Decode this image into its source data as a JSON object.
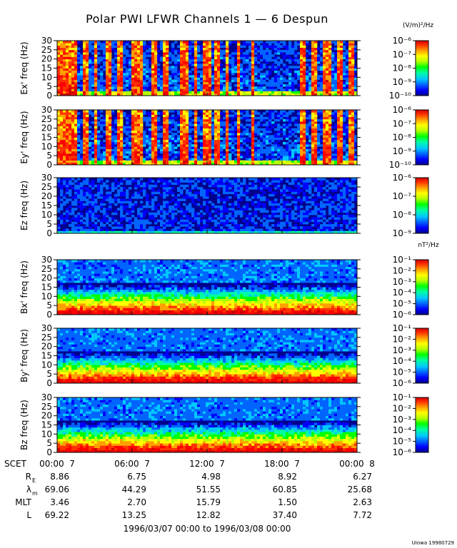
{
  "header": {
    "title": "Polar PWI LFWR Channels 1 — 6 Despun",
    "units_e": "(V/m)²/Hz",
    "units_b": "nT²/Hz"
  },
  "colors": {
    "spectrum": [
      "#00008c",
      "#0000ff",
      "#0064ff",
      "#00c8ff",
      "#00ffa0",
      "#00ff00",
      "#b4ff00",
      "#ffff00",
      "#ffa000",
      "#ff3200",
      "#ff0000",
      "#d20000"
    ]
  },
  "chart_data": [
    {
      "type": "heatmap",
      "ylabel": "Ex' freq (Hz)",
      "yticks": [
        "0",
        "5",
        "10",
        "15",
        "20",
        "25",
        "30"
      ],
      "ylim": [
        0,
        30
      ],
      "colorbar_ticks": [
        "10⁻⁶",
        "10⁻⁷",
        "10⁻⁸",
        "10⁻⁹",
        "10⁻¹⁰"
      ],
      "pattern": "bursty"
    },
    {
      "type": "heatmap",
      "ylabel": "Ey' freq (Hz)",
      "yticks": [
        "0",
        "5",
        "10",
        "15",
        "20",
        "25",
        "30"
      ],
      "ylim": [
        0,
        30
      ],
      "colorbar_ticks": [
        "10⁻⁶",
        "10⁻⁷",
        "10⁻⁸",
        "10⁻⁹",
        "10⁻¹⁰"
      ],
      "pattern": "bursty"
    },
    {
      "type": "heatmap",
      "ylabel": "Ez freq (Hz)",
      "yticks": [
        "0",
        "5",
        "10",
        "15",
        "20",
        "25",
        "30"
      ],
      "ylim": [
        0,
        30
      ],
      "colorbar_ticks": [
        "10⁻⁶",
        "10⁻⁷",
        "10⁻⁸",
        "10⁻⁹"
      ],
      "pattern": "quiet"
    },
    {
      "type": "heatmap",
      "ylabel": "Bx' freq (Hz)",
      "yticks": [
        "0",
        "5",
        "10",
        "15",
        "20",
        "25",
        "30"
      ],
      "ylim": [
        0,
        30
      ],
      "colorbar_ticks": [
        "10⁻¹",
        "10⁻²",
        "10⁻³",
        "10⁻⁴",
        "10⁻⁵",
        "10⁻⁶"
      ],
      "pattern": "banded"
    },
    {
      "type": "heatmap",
      "ylabel": "By' freq (Hz)",
      "yticks": [
        "0",
        "5",
        "10",
        "15",
        "20",
        "25",
        "30"
      ],
      "ylim": [
        0,
        30
      ],
      "colorbar_ticks": [
        "10⁻¹",
        "10⁻²",
        "10⁻³",
        "10⁻⁴",
        "10⁻⁵",
        "10⁻⁶"
      ],
      "pattern": "banded"
    },
    {
      "type": "heatmap",
      "ylabel": "Bz freq (Hz)",
      "yticks": [
        "0",
        "5",
        "10",
        "15",
        "20",
        "25",
        "30"
      ],
      "ylim": [
        0,
        30
      ],
      "colorbar_ticks": [
        "10⁻¹",
        "10⁻²",
        "10⁻³",
        "10⁻⁴",
        "10⁻⁵",
        "10⁻⁶"
      ],
      "pattern": "banded"
    }
  ],
  "xaxis": {
    "tick_labels": [
      "00:00  7",
      "06:00  7",
      "12:00  7",
      "18:00  7",
      "00:00  8"
    ],
    "row_label": "SCET"
  },
  "ephemeris": {
    "rows": [
      {
        "label": "R",
        "sub": "E",
        "values": [
          "8.86",
          "6.75",
          "4.98",
          "8.92",
          "6.27"
        ]
      },
      {
        "label": "λ",
        "sub": "m",
        "values": [
          "69.06",
          "44.29",
          "51.55",
          "60.85",
          "25.68"
        ]
      },
      {
        "label": "MLT",
        "sub": "",
        "values": [
          "3.46",
          "2.70",
          "15.79",
          "1.50",
          "2.63"
        ]
      },
      {
        "label": "L",
        "sub": "",
        "values": [
          "69.22",
          "13.25",
          "12.82",
          "37.40",
          "7.72"
        ]
      }
    ]
  },
  "footer": {
    "date_range": "1996/03/07 00:00 to 1996/03/08 00:00",
    "credit": "UIowa 19980729"
  }
}
